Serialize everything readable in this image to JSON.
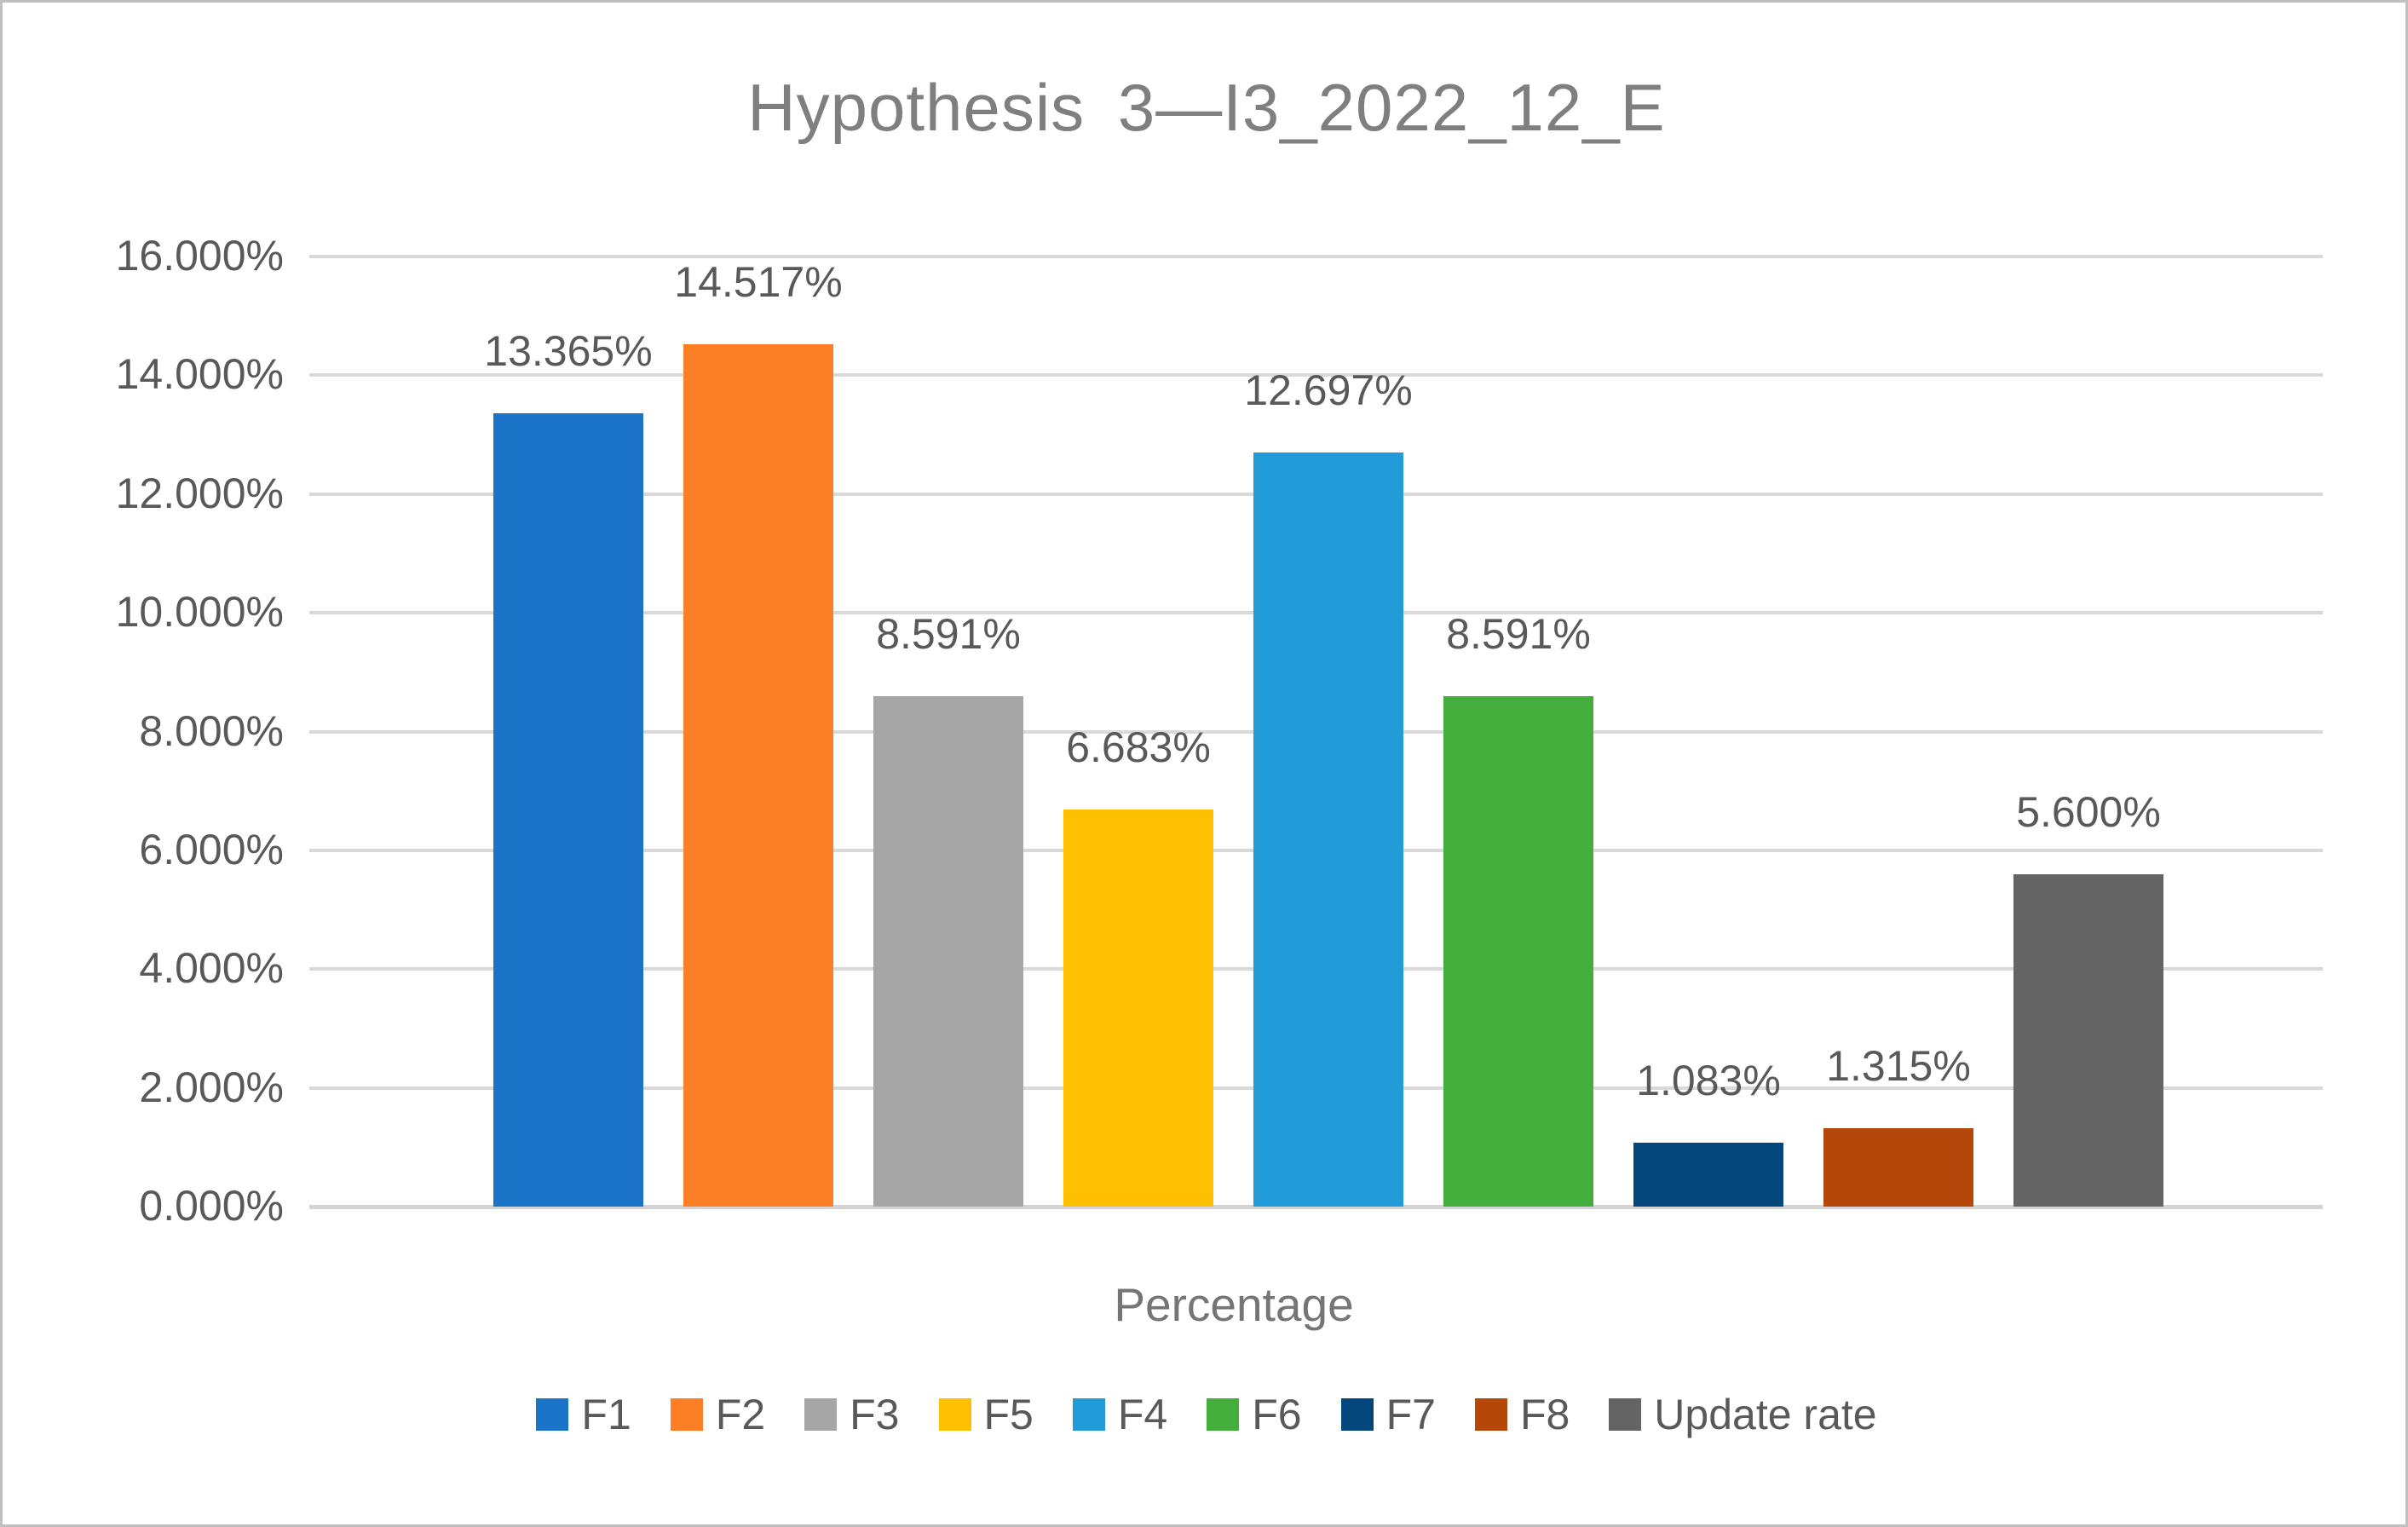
{
  "chart": {
    "title": "Hypothesis 3—I3_2022_12_E",
    "xlabel": "Percentage"
  },
  "chart_data": {
    "type": "bar",
    "title": "Hypothesis 3—I3_2022_12_E",
    "xlabel": "Percentage",
    "ylabel": "",
    "categories": [
      "F1",
      "F2",
      "F3",
      "F5",
      "F4",
      "F6",
      "F7",
      "F8",
      "Update rate"
    ],
    "values": [
      13.365,
      14.517,
      8.591,
      6.683,
      12.697,
      8.591,
      1.083,
      1.315,
      5.6
    ],
    "value_labels": [
      "13.365%",
      "14.517%",
      "8.591%",
      "6.683%",
      "12.697%",
      "8.591%",
      "1.083%",
      "1.315%",
      "5.600%"
    ],
    "colors": [
      "#1b73c8",
      "#fc7e25",
      "#a6a6a6",
      "#ffc001",
      "#219cd8",
      "#43ae3c",
      "#04477c",
      "#b54708",
      "#646464"
    ],
    "ylim": [
      0,
      16
    ],
    "ytick_step": 2,
    "ytick_labels": [
      "0.000%",
      "2.000%",
      "4.000%",
      "6.000%",
      "8.000%",
      "10.000%",
      "12.000%",
      "14.000%",
      "16.000%"
    ],
    "grid": true,
    "legend_position": "bottom"
  },
  "style_colors": {
    "title_text": "#7f7f7f",
    "axis_text": "#595959",
    "gridline": "#d9d9d9",
    "border": "#bfbfbf"
  }
}
